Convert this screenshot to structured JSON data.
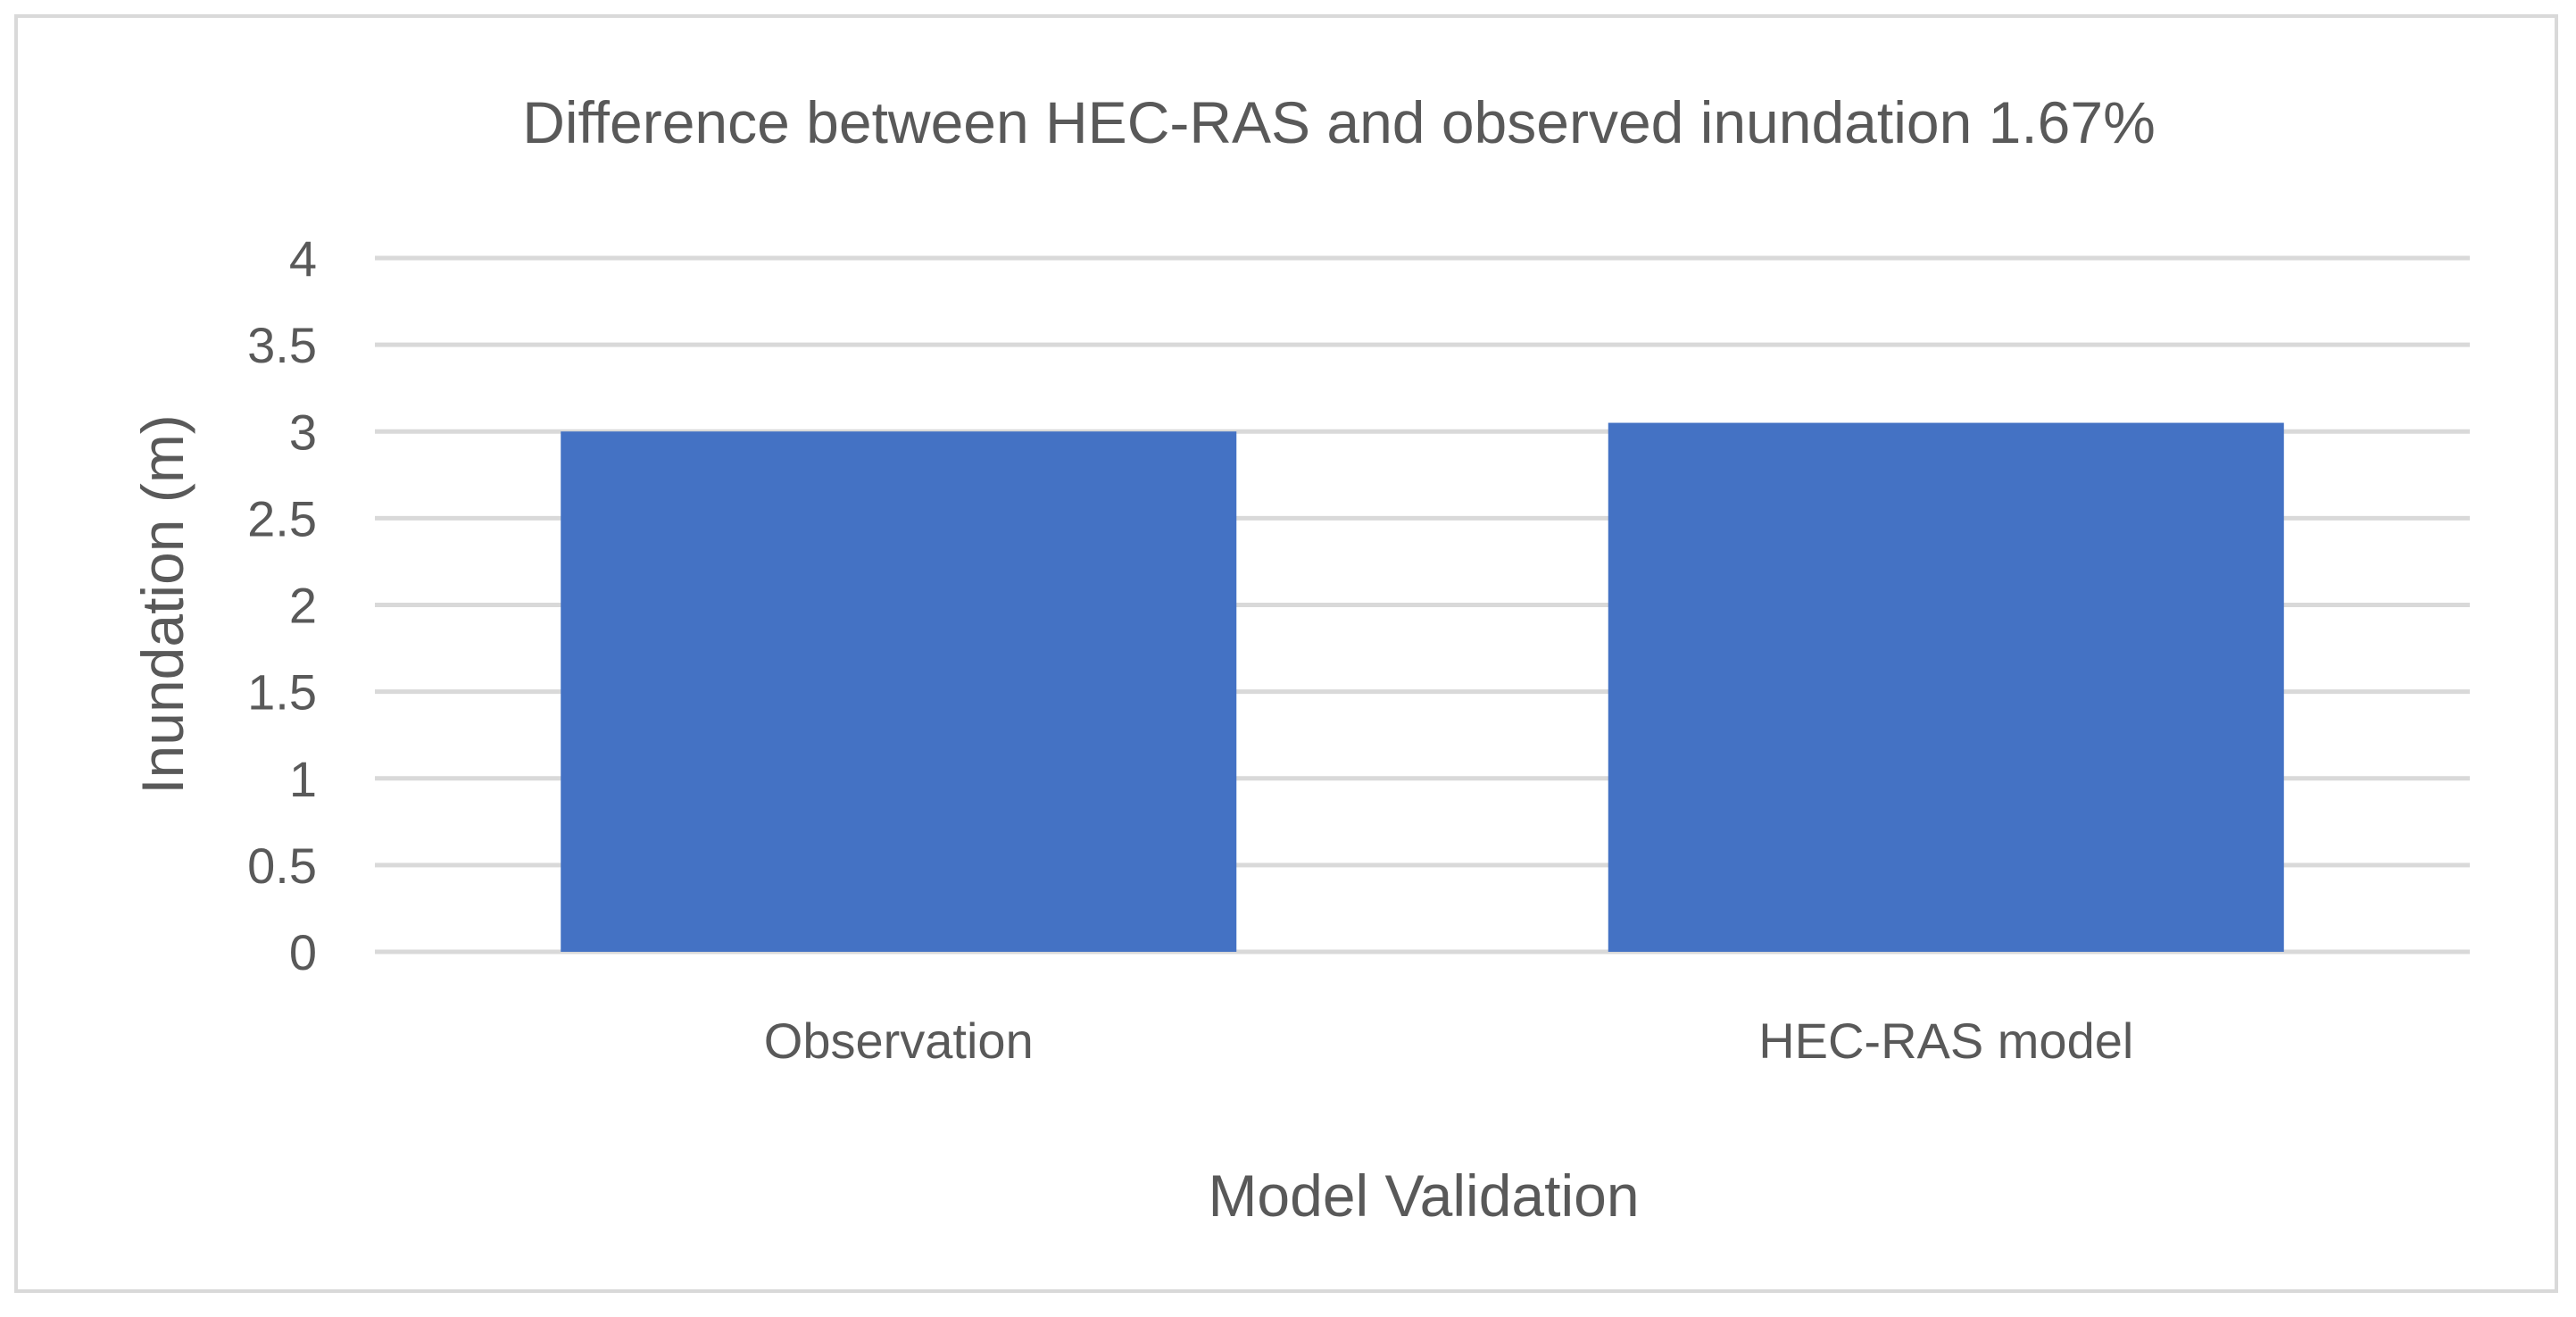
{
  "chart_data": {
    "type": "bar",
    "title": "Difference between HEC-RAS and observed inundation 1.67%",
    "xlabel": "Model Validation",
    "ylabel": "Inundation (m)",
    "categories": [
      "Observation",
      "HEC-RAS model"
    ],
    "values": [
      3.0,
      3.05
    ],
    "ylim": [
      0,
      4
    ],
    "yticks": [
      "0",
      "0.5",
      "1",
      "1.5",
      "2",
      "2.5",
      "3",
      "3.5",
      "4"
    ],
    "grid": true,
    "legend": "none",
    "bar_color": "#4472C4",
    "grid_color": "#D9D9D9"
  }
}
